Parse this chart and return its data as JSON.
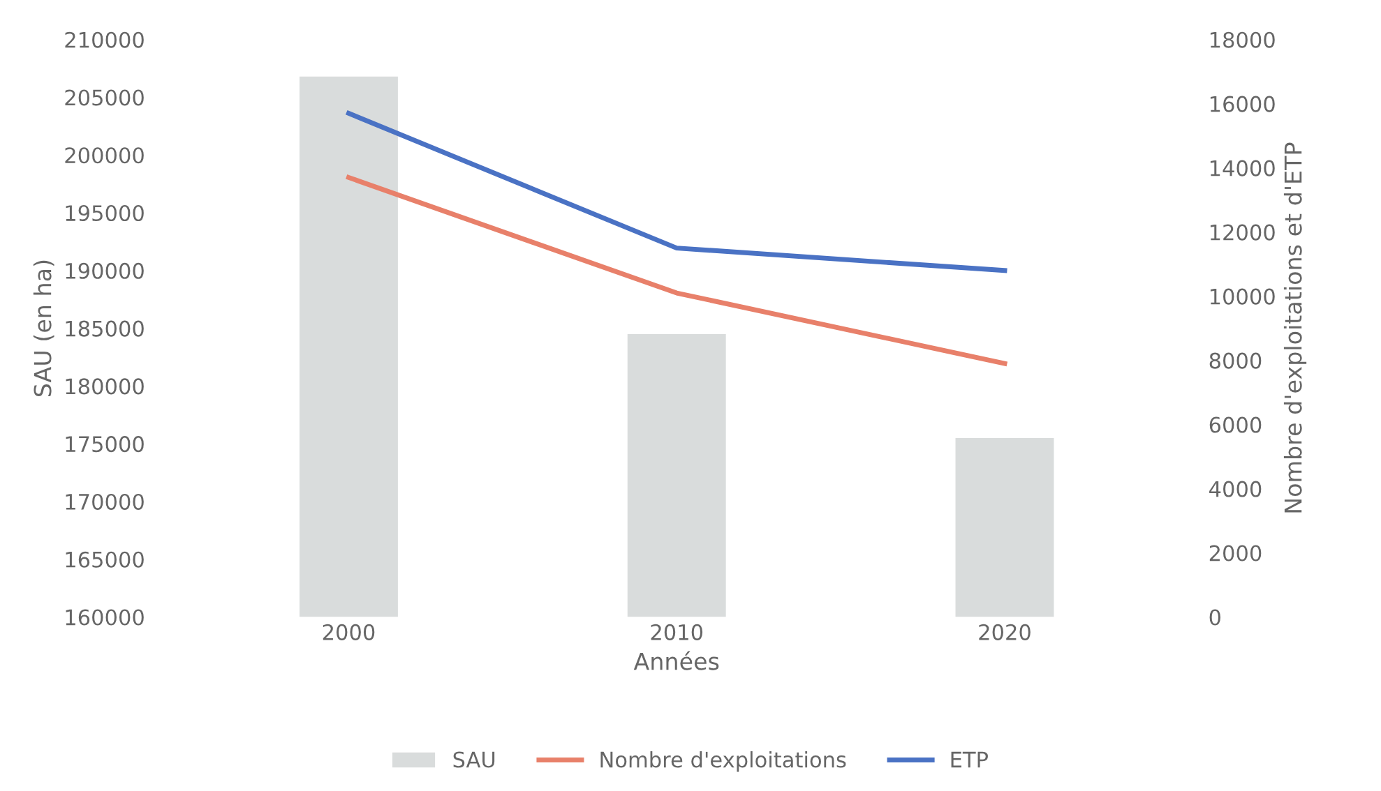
{
  "chart_data": {
    "type": "bar",
    "categories": [
      "2000",
      "2010",
      "2020"
    ],
    "xlabel": "Années",
    "ylabel": "SAU (en ha)",
    "y2label": "Nombre d'exploitations et d'ETP",
    "ylim": [
      160000,
      210000
    ],
    "yticks": [
      160000,
      165000,
      170000,
      175000,
      180000,
      185000,
      190000,
      195000,
      200000,
      205000,
      210000
    ],
    "y2lim": [
      0,
      18000
    ],
    "y2ticks": [
      0,
      2000,
      4000,
      6000,
      8000,
      10000,
      12000,
      14000,
      16000,
      18000
    ],
    "series": [
      {
        "name": "SAU",
        "color": "#d9dcdc",
        "values": [
          206800,
          184500,
          175500
        ]
      },
      {
        "name": "Nombre d'exploitations",
        "type": "line",
        "axis": "y2",
        "color": "#e8806a",
        "values": [
          13700,
          10100,
          7900
        ]
      },
      {
        "name": "ETP",
        "type": "line",
        "axis": "y2",
        "color": "#4a72c4",
        "values": [
          15700,
          11500,
          10800
        ]
      }
    ],
    "grid": false,
    "legend": "bottom"
  }
}
